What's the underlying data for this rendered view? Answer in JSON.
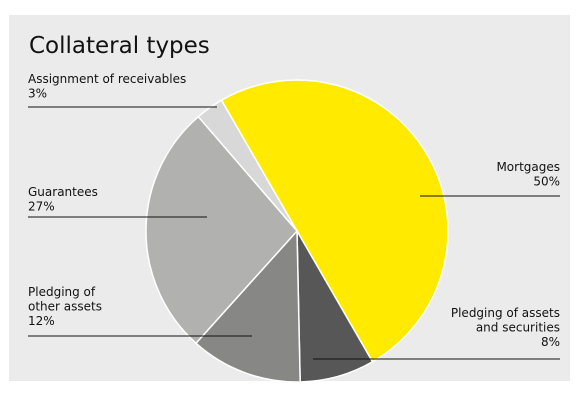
{
  "chart_data": {
    "type": "pie",
    "title": "Collateral types",
    "slices": [
      {
        "label": "Mortgages",
        "value": 50,
        "value_label": "50%",
        "color": "#ffea00"
      },
      {
        "label": "Pledging of assets and securities",
        "label_lines": [
          "Pledging of assets",
          "and securities"
        ],
        "value": 8,
        "value_label": "8%",
        "color": "#575757"
      },
      {
        "label": "Pledging of other assets",
        "label_lines": [
          "Pledging of",
          "other assets"
        ],
        "value": 12,
        "value_label": "12%",
        "color": "#878785"
      },
      {
        "label": "Guarantees",
        "value": 27,
        "value_label": "27%",
        "color": "#b1b1b0"
      },
      {
        "label": "Assignment of receivables",
        "value": 3,
        "value_label": "3%",
        "color": "#d8d8d8"
      }
    ]
  }
}
